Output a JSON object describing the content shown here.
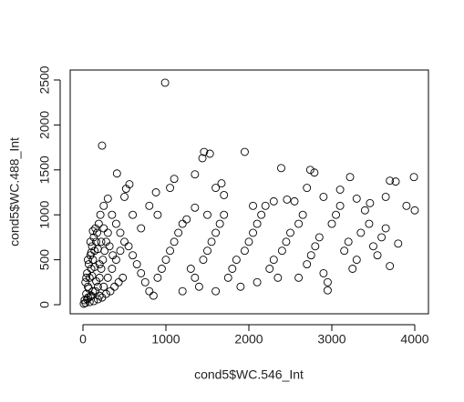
{
  "chart_data": {
    "type": "scatter",
    "x_label": "cond5$WC.546_Int",
    "y_label": "cond5$WC.488_Int",
    "xlim": [
      -154,
      4165
    ],
    "ylim": [
      -101,
      2611
    ],
    "xticks": [
      0,
      1000,
      2000,
      3000,
      4000
    ],
    "yticks": [
      0,
      500,
      1000,
      1500,
      2000,
      2500
    ],
    "color": "#000000",
    "x": [
      20,
      40,
      60,
      80,
      100,
      120,
      140,
      160,
      60,
      30,
      50,
      70,
      90,
      110,
      130,
      150,
      180,
      200,
      220,
      240,
      260,
      280,
      100,
      150,
      200,
      250,
      300,
      350,
      400,
      450,
      30,
      80,
      130,
      180,
      230,
      280,
      330,
      380,
      430,
      480,
      170,
      190,
      210,
      250,
      300,
      350,
      400,
      450,
      500,
      550,
      600,
      650,
      700,
      750,
      800,
      850,
      900,
      950,
      1000,
      1050,
      1100,
      1150,
      1200,
      1250,
      1300,
      1350,
      1400,
      1450,
      1500,
      1550,
      1600,
      1650,
      1700,
      1750,
      1800,
      1850,
      1900,
      1950,
      2000,
      2050,
      2100,
      2150,
      2200,
      2250,
      2300,
      2350,
      2400,
      2450,
      2500,
      2550,
      2600,
      2650,
      2700,
      2750,
      2800,
      2850,
      2900,
      2950,
      3000,
      3050,
      3100,
      3150,
      3200,
      3250,
      3300,
      3350,
      3400,
      3450,
      3500,
      3550,
      3600,
      3650,
      3700,
      3800,
      3900,
      4000,
      2950,
      1200,
      1600,
      2100,
      2600,
      900,
      800,
      700,
      600,
      500,
      1050,
      1350,
      1500,
      1600,
      1700,
      2050,
      2300,
      2460,
      2700,
      2900,
      3100,
      3300,
      3460,
      3650,
      3700,
      990,
      230,
      1950,
      1460,
      1530,
      1440,
      2390,
      2740,
      2790,
      3220,
      3990,
      1670,
      410,
      520,
      560,
      880,
      1100,
      1350,
      3770,
      10,
      50,
      90,
      120,
      70,
      40,
      110,
      160,
      200,
      140,
      60,
      100,
      180,
      220,
      120,
      90,
      250,
      300,
      320,
      360
    ],
    "values": [
      50,
      120,
      200,
      300,
      400,
      500,
      600,
      700,
      80,
      250,
      350,
      450,
      550,
      650,
      750,
      850,
      200,
      300,
      400,
      500,
      600,
      700,
      100,
      150,
      100,
      200,
      300,
      400,
      500,
      600,
      20,
      30,
      40,
      60,
      80,
      120,
      150,
      200,
      250,
      300,
      800,
      900,
      1000,
      1100,
      1180,
      1000,
      900,
      800,
      700,
      650,
      550,
      450,
      350,
      250,
      150,
      100,
      300,
      400,
      500,
      600,
      700,
      800,
      900,
      950,
      400,
      300,
      200,
      500,
      600,
      700,
      800,
      900,
      1000,
      300,
      400,
      500,
      200,
      600,
      700,
      800,
      900,
      1000,
      1100,
      400,
      500,
      300,
      600,
      700,
      800,
      1150,
      900,
      1000,
      450,
      550,
      650,
      750,
      350,
      250,
      900,
      1000,
      1100,
      600,
      700,
      400,
      500,
      800,
      1050,
      900,
      650,
      550,
      750,
      850,
      430,
      680,
      1100,
      1050,
      160,
      150,
      150,
      250,
      300,
      1000,
      1100,
      850,
      1000,
      1200,
      1300,
      1080,
      1000,
      1300,
      1220,
      1100,
      1150,
      1170,
      1300,
      1200,
      1280,
      1180,
      1130,
      1200,
      1380,
      2470,
      1770,
      1700,
      1700,
      1680,
      1630,
      1520,
      1500,
      1470,
      1420,
      1420,
      1350,
      1460,
      1290,
      1340,
      1250,
      1400,
      1450,
      1370,
      10,
      60,
      90,
      150,
      180,
      300,
      320,
      260,
      450,
      420,
      500,
      580,
      620,
      700,
      820,
      700,
      850,
      800,
      650,
      550
    ]
  }
}
